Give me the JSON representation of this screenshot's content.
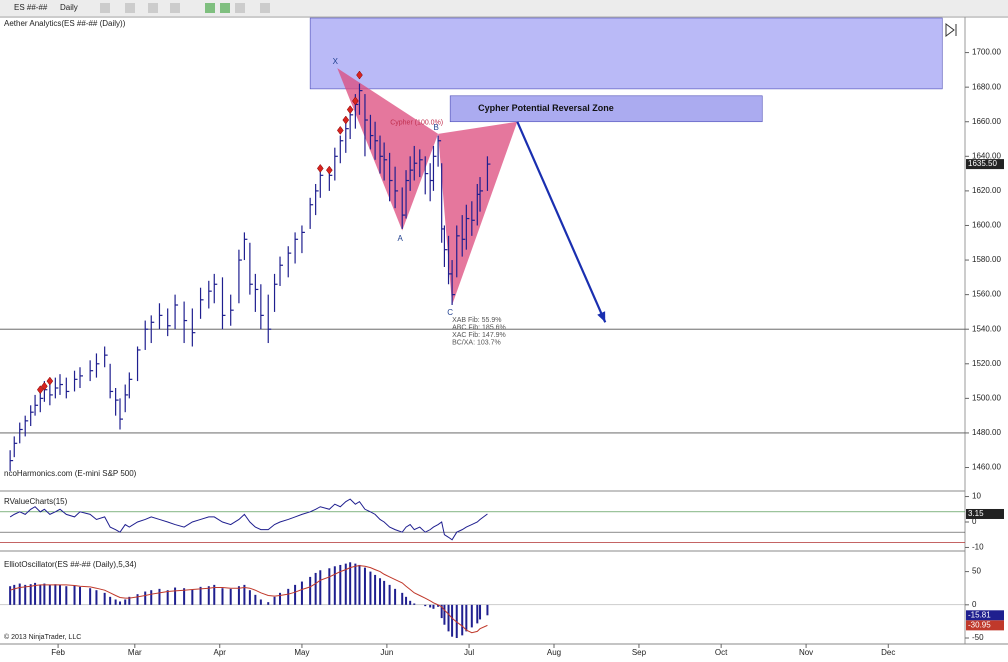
{
  "toolbar": {
    "instrument": "ES ##-##",
    "interval": "Daily"
  },
  "xaxis": {
    "xlim": [
      10.8,
      363
    ],
    "xticks": [
      {
        "value": 32,
        "label": "Feb"
      },
      {
        "value": 60,
        "label": "Mar"
      },
      {
        "value": 91,
        "label": "Apr"
      },
      {
        "value": 121,
        "label": "May"
      },
      {
        "value": 152,
        "label": "Jun"
      },
      {
        "value": 182,
        "label": "Jul"
      },
      {
        "value": 213,
        "label": "Aug"
      },
      {
        "value": 244,
        "label": "Sep"
      },
      {
        "value": 274,
        "label": "Oct"
      },
      {
        "value": 305,
        "label": "Nov"
      },
      {
        "value": 335,
        "label": "Dec"
      }
    ]
  },
  "price_panel": {
    "title": "Aether Analytics(ES ##-## (Daily))",
    "watermark": "ncoHarmonics.com (E-mini S&P 500)",
    "ylim": [
      1447,
      1720
    ],
    "yticks": [
      {
        "value": 1460,
        "label": "1460.00"
      },
      {
        "value": 1480,
        "label": "1480.00"
      },
      {
        "value": 1500,
        "label": "1500.00"
      },
      {
        "value": 1520,
        "label": "1520.00"
      },
      {
        "value": 1540,
        "label": "1540.00"
      },
      {
        "value": 1560,
        "label": "1560.00"
      },
      {
        "value": 1580,
        "label": "1580.00"
      },
      {
        "value": 1600,
        "label": "1600.00"
      },
      {
        "value": 1620,
        "label": "1620.00"
      },
      {
        "value": 1640,
        "label": "1640.00"
      },
      {
        "value": 1660,
        "label": "1660.00"
      },
      {
        "value": 1680,
        "label": "1680.00"
      },
      {
        "value": 1700,
        "label": "1700.00"
      }
    ],
    "bar_color": "#1f1f8f",
    "days": [
      14.5,
      16,
      18,
      20,
      22,
      23.6,
      25.5,
      27,
      29,
      31,
      32.7,
      35,
      38,
      40,
      43.7,
      46,
      49,
      51,
      53,
      54.6,
      56.5,
      58,
      61,
      63.8,
      66,
      69,
      72,
      74.7,
      78,
      81,
      84,
      87,
      89,
      92,
      95,
      98,
      100,
      102,
      104,
      106,
      108.7,
      111,
      113,
      116,
      118.5,
      121,
      124,
      126,
      127.7,
      131,
      133,
      135,
      137,
      138.6,
      140.5,
      142,
      144,
      146,
      147.7,
      149.5,
      151,
      153,
      155,
      157.6,
      159,
      160.5,
      162,
      164,
      166,
      167.8,
      169,
      170.7,
      172,
      173,
      174.5,
      175.8,
      177.5,
      179.5,
      181,
      183,
      185,
      186,
      188.7
    ],
    "highs": [
      1470,
      1478,
      1486,
      1490,
      1496,
      1502,
      1504,
      1510,
      1508,
      1512,
      1514,
      1512,
      1516,
      1518,
      1522,
      1526,
      1530,
      1520,
      1506,
      1500,
      1508,
      1515,
      1530,
      1545,
      1548,
      1555,
      1552,
      1560,
      1556,
      1552,
      1564,
      1568,
      1572,
      1570,
      1560,
      1586,
      1596,
      1590,
      1572,
      1566,
      1560,
      1572,
      1582,
      1588,
      1596,
      1600,
      1616,
      1624,
      1632,
      1634,
      1645,
      1652,
      1660,
      1668,
      1676,
      1682,
      1676,
      1664,
      1660,
      1652,
      1648,
      1642,
      1634,
      1622,
      1632,
      1640,
      1646,
      1644,
      1640,
      1636,
      1646,
      1652,
      1636,
      1600,
      1594,
      1580,
      1600,
      1606,
      1612,
      1614,
      1624,
      1628,
      1640
    ],
    "lows": [
      1458,
      1466,
      1474,
      1478,
      1484,
      1490,
      1492,
      1498,
      1496,
      1500,
      1502,
      1500,
      1504,
      1506,
      1510,
      1512,
      1518,
      1500,
      1490,
      1482,
      1492,
      1500,
      1510,
      1528,
      1532,
      1540,
      1536,
      1540,
      1532,
      1530,
      1546,
      1552,
      1555,
      1540,
      1542,
      1555,
      1580,
      1560,
      1550,
      1540,
      1532,
      1550,
      1565,
      1570,
      1578,
      1584,
      1598,
      1606,
      1616,
      1620,
      1626,
      1636,
      1642,
      1650,
      1656,
      1664,
      1640,
      1644,
      1638,
      1630,
      1626,
      1614,
      1610,
      1598,
      1604,
      1620,
      1626,
      1628,
      1618,
      1614,
      1620,
      1634,
      1590,
      1576,
      1566,
      1554,
      1570,
      1582,
      1586,
      1594,
      1600,
      1608,
      1620
    ],
    "closes": [
      1464,
      1474,
      1482,
      1487,
      1492,
      1496,
      1500,
      1505,
      1502,
      1506,
      1508,
      1504,
      1511,
      1513,
      1516,
      1520,
      1525,
      1504,
      1499,
      1488,
      1502,
      1511,
      1528,
      1540,
      1544,
      1548,
      1542,
      1554,
      1545,
      1538,
      1557,
      1562,
      1566,
      1548,
      1551,
      1580,
      1592,
      1566,
      1563,
      1548,
      1540,
      1566,
      1577,
      1584,
      1592,
      1596,
      1612,
      1620,
      1629,
      1629,
      1640,
      1649,
      1656,
      1664,
      1670,
      1678,
      1661,
      1652,
      1649,
      1640,
      1638,
      1626,
      1620,
      1606,
      1626,
      1632,
      1636,
      1638,
      1630,
      1626,
      1640,
      1649,
      1598,
      1586,
      1572,
      1560,
      1594,
      1592,
      1604,
      1603,
      1618,
      1620,
      1635.5
    ],
    "last": {
      "value": 1635.5,
      "label": "1635.50"
    },
    "hlines": [
      1540,
      1480
    ],
    "signals": [
      {
        "day": 25.5,
        "price": 1505
      },
      {
        "day": 27,
        "price": 1507
      },
      {
        "day": 29,
        "price": 1510
      },
      {
        "day": 127.7,
        "price": 1633
      },
      {
        "day": 131,
        "price": 1632
      },
      {
        "day": 135,
        "price": 1655
      },
      {
        "day": 137,
        "price": 1661
      },
      {
        "day": 138.6,
        "price": 1667
      },
      {
        "day": 140.5,
        "price": 1672
      },
      {
        "day": 142,
        "price": 1687
      }
    ],
    "zones": [
      {
        "x0": 124,
        "x1": 354.7,
        "y0": 1679,
        "y1": 1720,
        "color": "#b3b3f7"
      },
      {
        "label": "Cypher Potential Reversal Zone",
        "x0": 175.1,
        "x1": 289,
        "y0": 1660,
        "y1": 1675,
        "color": "#a3a3ef"
      }
    ],
    "pattern": {
      "label": "Cypher (100.0%)",
      "color": "#dc4a7c",
      "points": [
        {
          "label": "X",
          "day": 133.9,
          "price": 1691
        },
        {
          "label": "A",
          "day": 157.6,
          "price": 1597
        },
        {
          "label": "B",
          "day": 170.7,
          "price": 1653
        },
        {
          "label": "C",
          "day": 175.8,
          "price": 1554
        },
        {
          "day": 199.6,
          "price": 1660
        }
      ]
    },
    "projection": {
      "color": "#1a2fb0",
      "day0": 199.6,
      "price0": 1660,
      "day1": 231.7,
      "price1": 1544
    },
    "fib_lines": [
      "XAB Fib:  55.9%",
      "ABC Fib:  185.6%",
      "XAC Fib:  147.9%",
      "BC/XA:  103.7%"
    ]
  },
  "rvalue_panel": {
    "title": "RValueCharts(15)",
    "ylim": [
      -11,
      11
    ],
    "yticks": [
      10,
      0,
      -10
    ],
    "levels": [
      4,
      -4,
      -8
    ],
    "values": [
      2,
      3,
      4,
      3,
      5,
      6,
      4,
      5,
      3,
      4,
      5,
      3,
      2,
      4,
      3,
      1,
      2,
      -2,
      -3,
      -4,
      -1,
      -2,
      0,
      1,
      2,
      1,
      0,
      -1,
      -2,
      0,
      1,
      2,
      2,
      0,
      -1,
      1,
      3,
      0,
      -2,
      -3,
      -3,
      -1,
      0,
      1,
      2,
      3,
      4,
      5,
      6,
      5,
      7,
      6,
      8,
      9,
      7,
      8,
      5,
      4,
      3,
      1,
      0,
      -2,
      -3,
      -4,
      -2,
      -1,
      -3,
      -2,
      -4,
      -3,
      -2,
      -1,
      0,
      -5,
      -6,
      -7,
      -4,
      -3,
      -2,
      -1,
      0,
      1,
      3.15
    ],
    "last": {
      "value": 3.15,
      "label": "3.15"
    }
  },
  "osc_panel": {
    "title": "ElliotOscillator(ES ##-## (Daily),5,34)",
    "ylim": [
      -56,
      78
    ],
    "yticks": [
      50,
      0,
      -50
    ],
    "values": [
      28,
      30,
      32,
      30,
      31,
      33,
      30,
      32,
      30,
      31,
      30,
      28,
      29,
      27,
      25,
      22,
      18,
      12,
      8,
      5,
      8,
      12,
      16,
      20,
      22,
      24,
      22,
      26,
      25,
      23,
      27,
      28,
      30,
      25,
      24,
      28,
      30,
      22,
      15,
      8,
      4,
      12,
      18,
      24,
      30,
      35,
      42,
      48,
      52,
      55,
      58,
      60,
      62,
      64,
      62,
      60,
      56,
      50,
      45,
      40,
      36,
      30,
      24,
      18,
      12,
      6,
      2,
      0,
      -2,
      -4,
      -6,
      -3,
      -20,
      -30,
      -40,
      -48,
      -50,
      -46,
      -40,
      -34,
      -28,
      -22,
      -15.81
    ],
    "signal": [
      22,
      24,
      26,
      27,
      28,
      29,
      30,
      30,
      30,
      30,
      30,
      30,
      29,
      28,
      27,
      25,
      22,
      18,
      14,
      11,
      10,
      10,
      12,
      14,
      16,
      18,
      20,
      21,
      22,
      23,
      24,
      25,
      26,
      26,
      25,
      25,
      26,
      25,
      22,
      18,
      14,
      13,
      14,
      16,
      19,
      23,
      27,
      32,
      37,
      42,
      46,
      50,
      53,
      56,
      58,
      59,
      58,
      56,
      53,
      50,
      46,
      42,
      38,
      33,
      28,
      23,
      18,
      14,
      10,
      6,
      3,
      0,
      -3,
      -8,
      -14,
      -20,
      -26,
      -32,
      -38,
      -42,
      -40,
      -36,
      -30.95
    ],
    "last": {
      "value": -15.81,
      "label": "-15.81"
    },
    "last_signal": {
      "value": -30.95,
      "label": "-30.95"
    }
  },
  "copyright": "© 2013 NinjaTrader, LLC"
}
